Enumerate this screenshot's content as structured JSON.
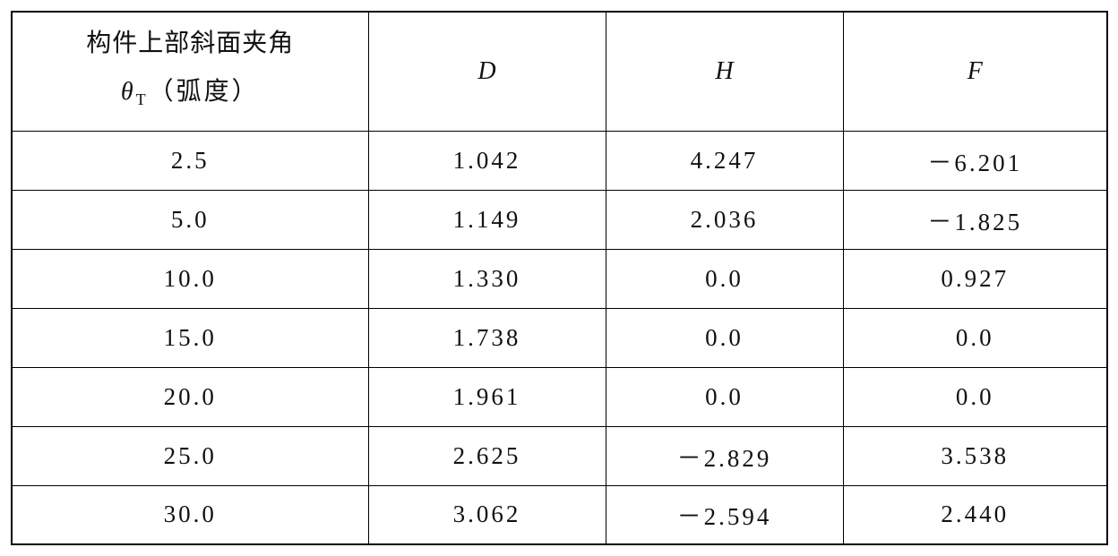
{
  "table": {
    "header": {
      "first": {
        "line1": "构件上部斜面夹角",
        "symbol": "θ",
        "subscript": "T",
        "unit": "（弧度）"
      },
      "columns": [
        "D",
        "H",
        "F"
      ]
    },
    "rows": [
      [
        "2.5",
        "1.042",
        "4.247",
        "－6.201"
      ],
      [
        "5.0",
        "1.149",
        "2.036",
        "－1.825"
      ],
      [
        "10.0",
        "1.330",
        "0.0",
        "0.927"
      ],
      [
        "15.0",
        "1.738",
        "0.0",
        "0.0"
      ],
      [
        "20.0",
        "1.961",
        "0.0",
        "0.0"
      ],
      [
        "25.0",
        "2.625",
        "－2.829",
        "3.538"
      ],
      [
        "30.0",
        "3.062",
        "－2.594",
        "2.440"
      ]
    ]
  }
}
